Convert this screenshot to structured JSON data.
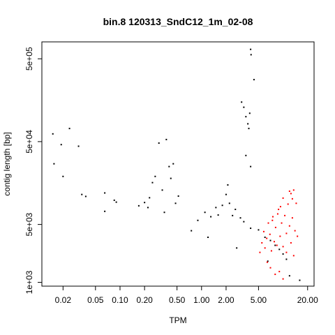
{
  "chart_data": {
    "type": "scatter",
    "title": "bin.8 120313_SndC12_1m_02-08",
    "xlabel": "TPM",
    "ylabel": "contig length [bp]",
    "x_scale": "log",
    "y_scale": "log",
    "xlim": [
      0.011,
      24
    ],
    "ylim": [
      900,
      800000
    ],
    "x_ticks": [
      0.02,
      0.05,
      0.1,
      0.2,
      0.5,
      1.0,
      2.0,
      5.0,
      20.0
    ],
    "x_tick_labels": [
      "0.02",
      "0.05",
      "0.10",
      "0.20",
      "0.50",
      "1.00",
      "2.00",
      "5.00",
      "20.00"
    ],
    "y_ticks": [
      1000,
      5000,
      50000,
      500000
    ],
    "y_tick_labels": [
      "1e+03",
      "5e+03",
      "5e+04",
      "5e+05"
    ],
    "grid": false,
    "series": [
      {
        "color": "#000000",
        "points": [
          [
            0.015,
            62000
          ],
          [
            0.0155,
            27000
          ],
          [
            0.019,
            46000
          ],
          [
            0.02,
            19000
          ],
          [
            0.024,
            72000
          ],
          [
            0.031,
            44000
          ],
          [
            0.034,
            11500
          ],
          [
            0.038,
            10900
          ],
          [
            0.065,
            12000
          ],
          [
            0.085,
            9800
          ],
          [
            0.09,
            9300
          ],
          [
            0.065,
            7200
          ],
          [
            0.17,
            8400
          ],
          [
            0.2,
            9200
          ],
          [
            0.23,
            10500
          ],
          [
            0.25,
            16000
          ],
          [
            0.3,
            48000
          ],
          [
            0.33,
            13000
          ],
          [
            0.37,
            53000
          ],
          [
            0.4,
            25000
          ],
          [
            0.42,
            18000
          ],
          [
            0.45,
            27000
          ],
          [
            0.48,
            9000
          ],
          [
            0.52,
            11000
          ],
          [
            0.27,
            19000
          ],
          [
            0.22,
            8000
          ],
          [
            0.35,
            7000
          ],
          [
            3.1,
            150000
          ],
          [
            3.3,
            130000
          ],
          [
            3.5,
            100000
          ],
          [
            3.7,
            82000
          ],
          [
            3.8,
            72000
          ],
          [
            4.0,
            650000
          ],
          [
            4.05,
            560000
          ],
          [
            4.4,
            280000
          ],
          [
            3.9,
            110000
          ],
          [
            3.5,
            34000
          ],
          [
            4.0,
            25000
          ],
          [
            2.1,
            15000
          ],
          [
            2.0,
            11500
          ],
          [
            1.5,
            8000
          ],
          [
            1.8,
            8500
          ],
          [
            2.2,
            9000
          ],
          [
            2.6,
            7600
          ],
          [
            1.6,
            6500
          ],
          [
            1.3,
            6200
          ],
          [
            2.4,
            6400
          ],
          [
            3.0,
            6000
          ],
          [
            1.1,
            7000
          ],
          [
            0.9,
            5600
          ],
          [
            3.3,
            5400
          ],
          [
            4.0,
            4500
          ],
          [
            5.0,
            4300
          ],
          [
            6.0,
            3500
          ],
          [
            7.0,
            3200
          ],
          [
            8.0,
            2800
          ],
          [
            9.0,
            2500
          ],
          [
            10.0,
            2200
          ],
          [
            11.0,
            1900
          ],
          [
            16.0,
            1060
          ],
          [
            12.0,
            1200
          ],
          [
            6.5,
            1800
          ],
          [
            0.75,
            4200
          ],
          [
            1.2,
            3500
          ],
          [
            2.7,
            2600
          ]
        ]
      },
      {
        "color": "#ff0000",
        "points": [
          [
            5.2,
            2300
          ],
          [
            5.5,
            3000
          ],
          [
            5.8,
            4100
          ],
          [
            6.0,
            2600
          ],
          [
            6.3,
            3400
          ],
          [
            6.6,
            5200
          ],
          [
            6.9,
            3800
          ],
          [
            7.2,
            2400
          ],
          [
            7.5,
            6200
          ],
          [
            7.8,
            3100
          ],
          [
            8.1,
            4600
          ],
          [
            8.4,
            2800
          ],
          [
            8.8,
            7600
          ],
          [
            9.2,
            3600
          ],
          [
            9.6,
            5200
          ],
          [
            10.0,
            2700
          ],
          [
            10.5,
            6400
          ],
          [
            11.0,
            3900
          ],
          [
            11.5,
            8800
          ],
          [
            12.0,
            4800
          ],
          [
            12.5,
            11800
          ],
          [
            13.0,
            6000
          ],
          [
            13.5,
            13000
          ],
          [
            14.0,
            4200
          ],
          [
            14.5,
            9000
          ],
          [
            7.0,
            1500
          ],
          [
            8.0,
            1250
          ],
          [
            9.0,
            1350
          ],
          [
            10.0,
            1100
          ],
          [
            6.4,
            1750
          ],
          [
            11.0,
            2300
          ],
          [
            12.5,
            3000
          ],
          [
            13.5,
            2100
          ],
          [
            15.0,
            3600
          ],
          [
            12.0,
            12600
          ],
          [
            13.0,
            10200
          ],
          [
            10.0,
            10400
          ],
          [
            9.3,
            8200
          ],
          [
            8.6,
            6700
          ],
          [
            7.4,
            5600
          ]
        ]
      }
    ]
  }
}
